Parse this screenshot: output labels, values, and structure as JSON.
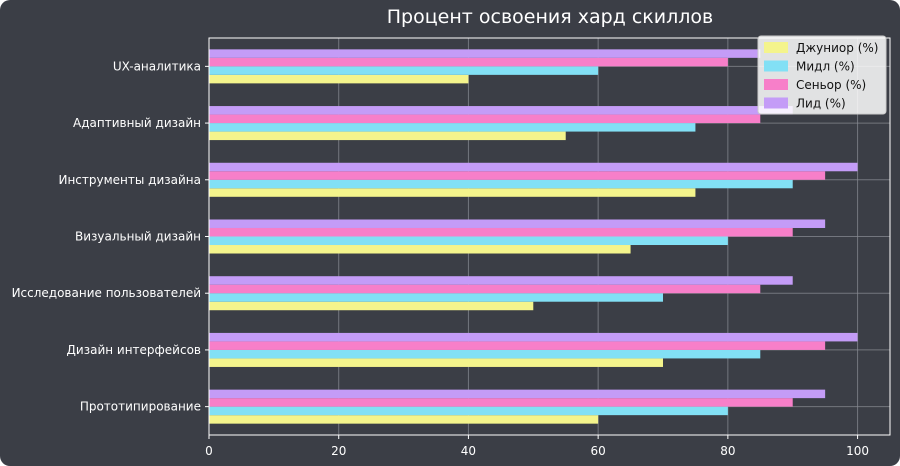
{
  "chart_data": {
    "type": "bar",
    "orientation": "horizontal",
    "title": "Процент освоения хард скиллов",
    "xlabel": "",
    "ylabel": "",
    "xlim": [
      0,
      105
    ],
    "xticks": [
      0,
      20,
      40,
      60,
      80,
      100
    ],
    "grid": true,
    "legend_position": "upper right",
    "categories": [
      "Прототипирование",
      "Дизайн интерфейсов",
      "Исследование пользователей",
      "Визуальный дизайн",
      "Инструменты дизайна",
      "Адаптивный дизайн",
      "UX-аналитика"
    ],
    "series": [
      {
        "name": "Джуниор (%)",
        "color": "#f4f48c",
        "values": [
          60,
          70,
          50,
          65,
          75,
          55,
          40
        ]
      },
      {
        "name": "Мидл (%)",
        "color": "#82e0f5",
        "values": [
          80,
          85,
          70,
          80,
          90,
          75,
          60
        ]
      },
      {
        "name": "Сеньор (%)",
        "color": "#f77fc9",
        "values": [
          90,
          95,
          85,
          90,
          95,
          85,
          80
        ]
      },
      {
        "name": "Лид (%)",
        "color": "#c49cf7",
        "values": [
          95,
          100,
          90,
          95,
          100,
          90,
          85
        ]
      }
    ]
  }
}
